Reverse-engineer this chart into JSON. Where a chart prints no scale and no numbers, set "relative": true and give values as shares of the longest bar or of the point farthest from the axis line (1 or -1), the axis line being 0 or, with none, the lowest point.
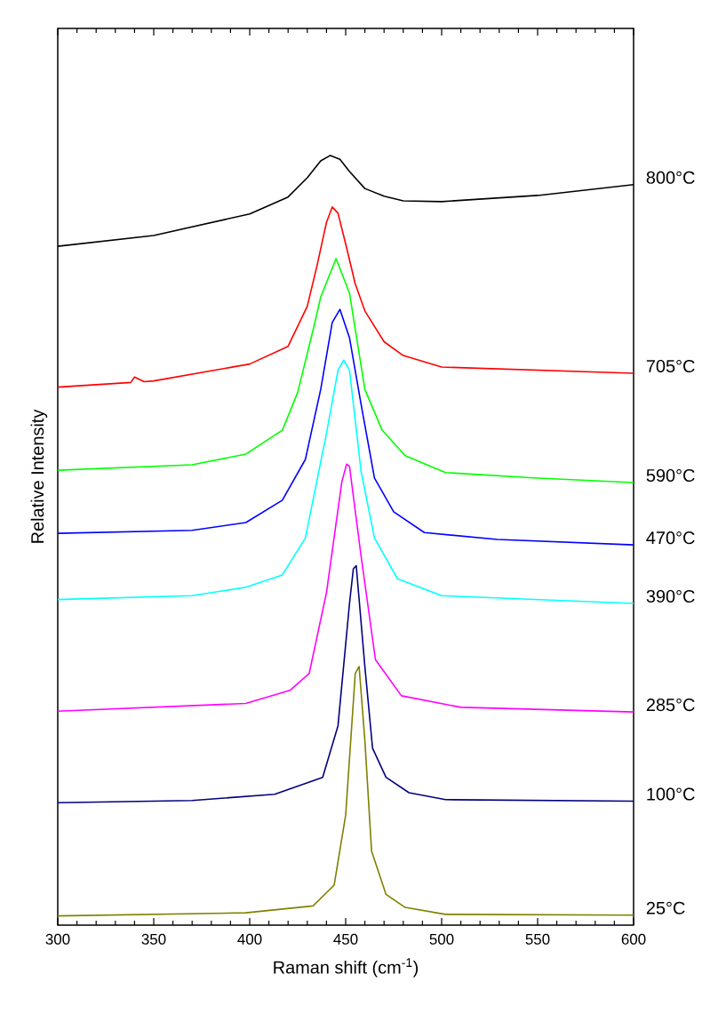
{
  "chart_data": {
    "type": "line",
    "xlabel": "Raman shift (cm$^{-1}$)",
    "ylabel": "Relative Intensity",
    "relative": true,
    "xlim": [
      300,
      600
    ],
    "xticks": [
      300,
      350,
      400,
      450,
      500,
      550,
      600
    ],
    "grid": false,
    "series": [
      {
        "name": "800°C",
        "color": "#000000",
        "x": [
          300,
          350,
          400,
          420,
          430,
          437,
          442,
          447,
          452,
          460,
          470,
          480,
          500,
          550,
          600
        ],
        "values": [
          0.882,
          0.896,
          0.924,
          0.946,
          0.971,
          0.993,
          1.0,
          0.995,
          0.979,
          0.957,
          0.947,
          0.941,
          0.94,
          0.948,
          0.962
        ]
      },
      {
        "name": "705°C",
        "color": "#ff0000",
        "x": [
          300,
          338,
          340,
          345,
          350,
          400,
          420,
          430,
          435,
          440,
          443,
          446,
          450,
          455,
          460,
          470,
          480,
          500,
          550,
          600
        ],
        "values": [
          0.699,
          0.705,
          0.712,
          0.706,
          0.707,
          0.729,
          0.752,
          0.804,
          0.856,
          0.913,
          0.933,
          0.925,
          0.885,
          0.833,
          0.798,
          0.758,
          0.74,
          0.725,
          0.721,
          0.717
        ]
      },
      {
        "name": "590°C",
        "color": "#00ff00",
        "x": [
          300,
          370,
          398,
          417,
          425,
          433,
          437,
          445,
          452,
          460,
          469,
          481,
          502,
          548,
          600
        ],
        "values": [
          0.591,
          0.598,
          0.612,
          0.643,
          0.692,
          0.773,
          0.816,
          0.866,
          0.821,
          0.696,
          0.643,
          0.61,
          0.588,
          0.581,
          0.575
        ]
      },
      {
        "name": "470°C",
        "color": "#0000ff",
        "x": [
          300,
          370,
          398,
          417,
          429,
          437,
          443,
          447,
          452,
          458,
          465,
          475,
          491,
          529,
          600
        ],
        "values": [
          0.509,
          0.513,
          0.523,
          0.552,
          0.605,
          0.696,
          0.783,
          0.8,
          0.763,
          0.677,
          0.581,
          0.537,
          0.51,
          0.501,
          0.494
        ]
      },
      {
        "name": "390°C",
        "color": "#00ffff",
        "x": [
          300,
          370,
          398,
          417,
          429,
          440,
          446,
          449,
          452,
          458,
          465,
          477,
          500,
          600
        ],
        "values": [
          0.423,
          0.428,
          0.439,
          0.455,
          0.503,
          0.639,
          0.721,
          0.734,
          0.721,
          0.59,
          0.503,
          0.45,
          0.428,
          0.418
        ]
      },
      {
        "name": "285°C",
        "color": "#ff00ff",
        "x": [
          300,
          398,
          421,
          431,
          440,
          448,
          450.5,
          452,
          458,
          465.5,
          479,
          510,
          600
        ],
        "values": [
          0.278,
          0.288,
          0.305,
          0.327,
          0.432,
          0.576,
          0.599,
          0.596,
          0.48,
          0.345,
          0.298,
          0.283,
          0.277
        ]
      },
      {
        "name": "100°C",
        "color": "#000080",
        "x": [
          300,
          370,
          413,
          438,
          446,
          452,
          454,
          455.5,
          460,
          464,
          471,
          483,
          502,
          600
        ],
        "values": [
          0.159,
          0.162,
          0.17,
          0.192,
          0.259,
          0.418,
          0.463,
          0.467,
          0.336,
          0.23,
          0.192,
          0.172,
          0.163,
          0.161
        ]
      },
      {
        "name": "25°C",
        "color": "#808000",
        "x": [
          300,
          398,
          433,
          444,
          450,
          455,
          457,
          460,
          463.5,
          471,
          481,
          502,
          600
        ],
        "values": [
          0.012,
          0.016,
          0.025,
          0.052,
          0.143,
          0.327,
          0.336,
          0.24,
          0.096,
          0.04,
          0.023,
          0.014,
          0.013
        ]
      }
    ]
  }
}
